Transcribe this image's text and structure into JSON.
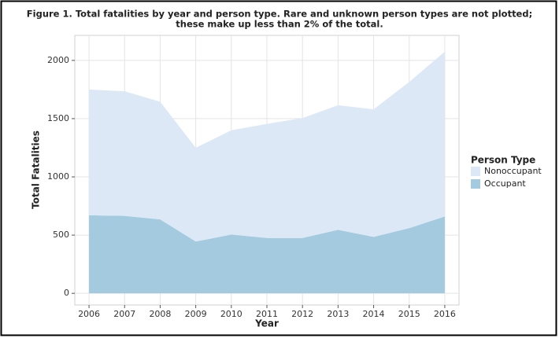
{
  "chart_data": {
    "type": "area",
    "title": [
      "Figure 1. Total fatalities by year and person type. Rare and unknown person types are not plotted;",
      "these make up less than 2% of the total."
    ],
    "x_label": "Year",
    "y_label": "Total Fatalities",
    "x": [
      2006,
      2007,
      2008,
      2009,
      2010,
      2011,
      2012,
      2013,
      2014,
      2015,
      2016
    ],
    "series": [
      {
        "name": "Occupant",
        "color": "#a3cadf",
        "values": [
          670,
          665,
          635,
          445,
          505,
          475,
          475,
          545,
          485,
          560,
          660
        ]
      },
      {
        "name": "Nonoccupant",
        "color": "#dce8f5",
        "values": [
          1080,
          1070,
          1010,
          805,
          895,
          980,
          1030,
          1070,
          1095,
          1255,
          1415
        ]
      }
    ],
    "stacked": true,
    "xlim": [
      2005.6,
      2016.4
    ],
    "xticks": [
      2006,
      2007,
      2008,
      2009,
      2010,
      2011,
      2012,
      2013,
      2014,
      2015,
      2016
    ],
    "ylim": [
      -100,
      2215
    ],
    "yticks": [
      0,
      500,
      1000,
      1500,
      2000
    ],
    "grid": true,
    "legend_title": "Person Type",
    "legend_position": "right"
  }
}
